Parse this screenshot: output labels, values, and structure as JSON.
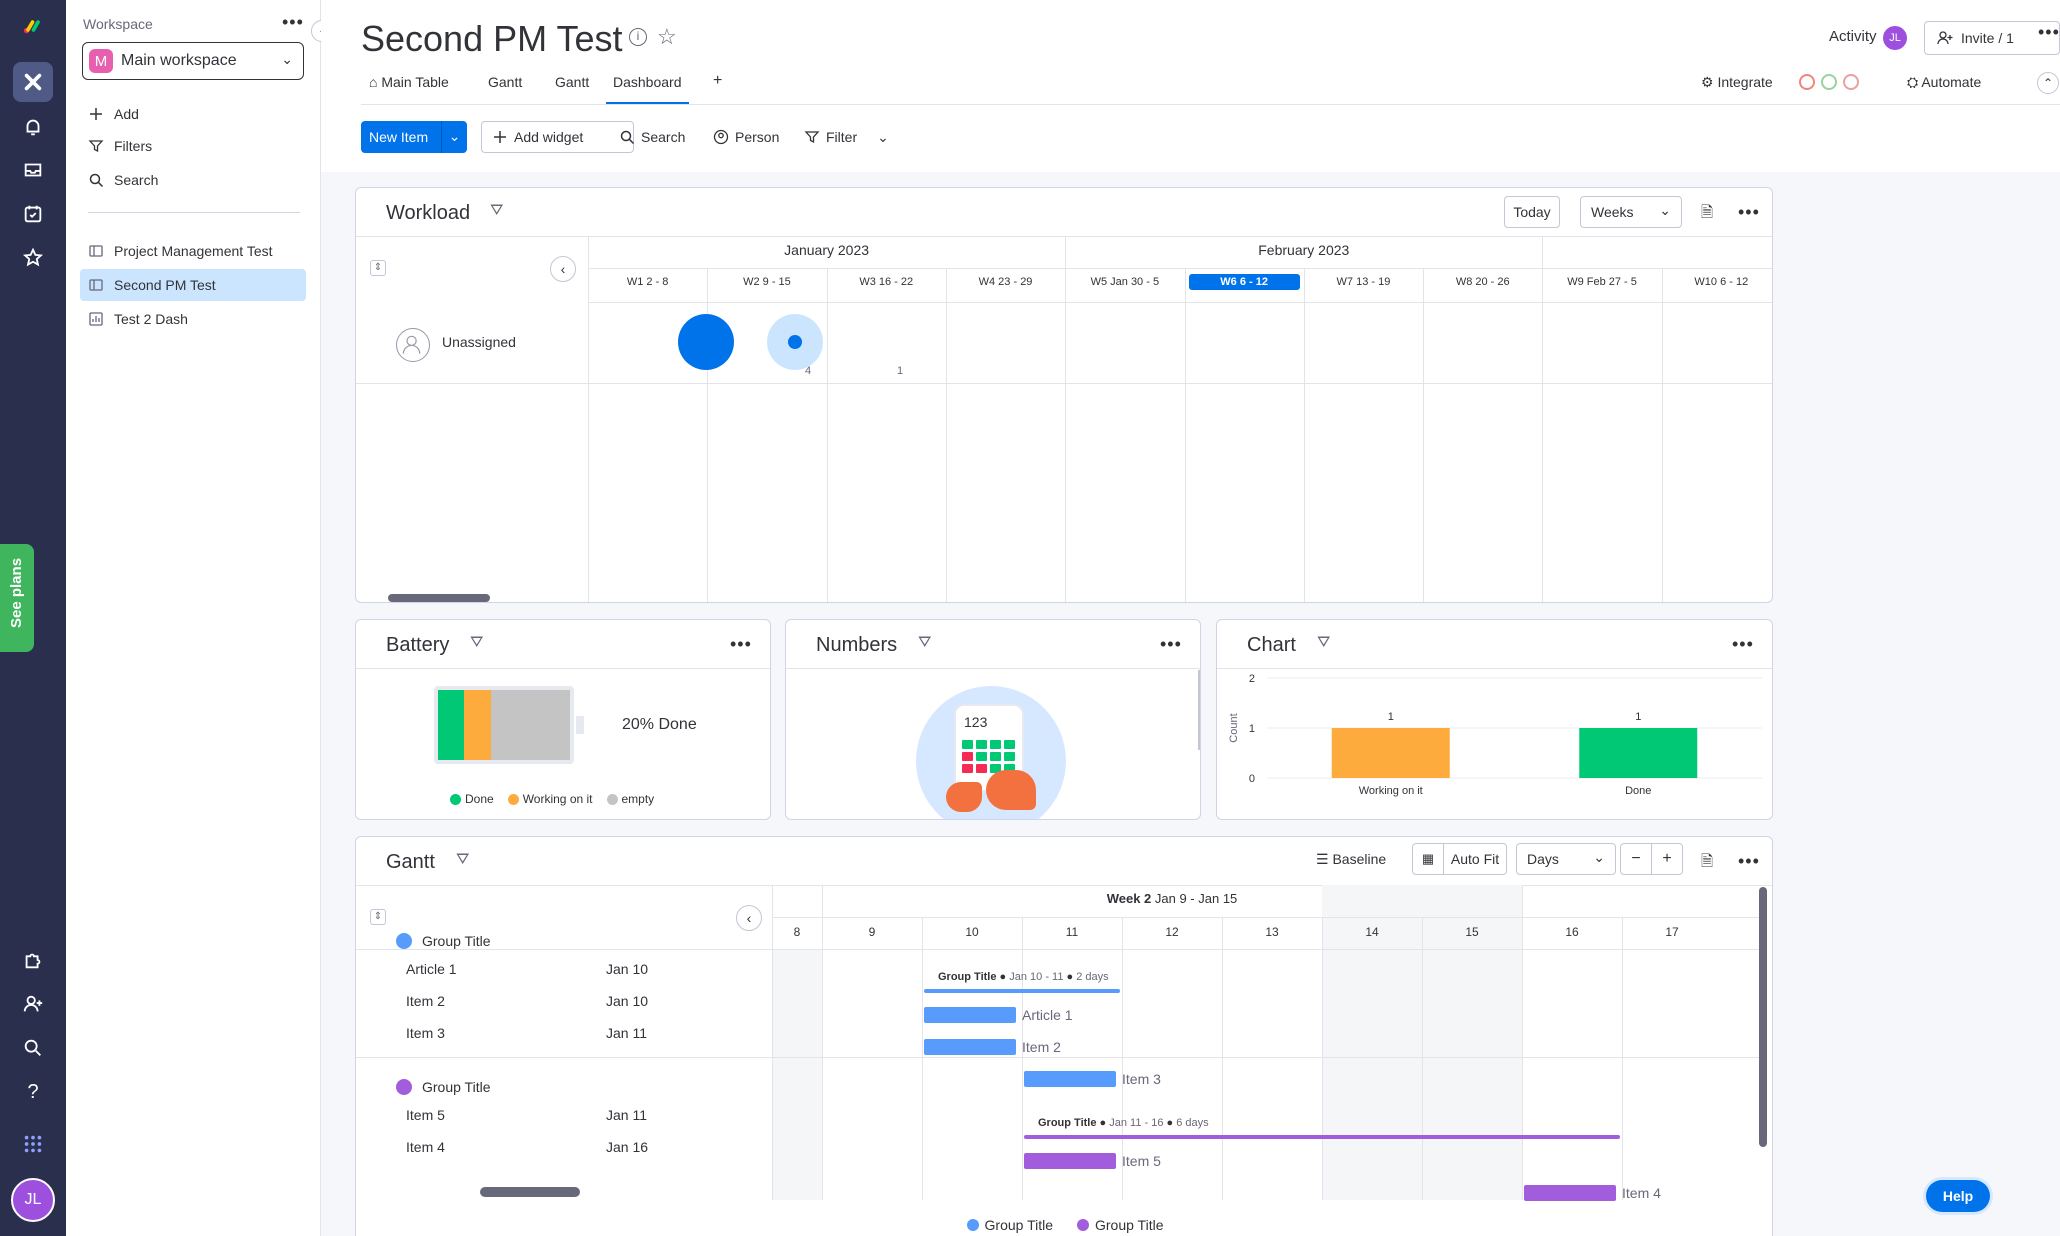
{
  "sidebar": {
    "workspace_label": "Workspace",
    "workspace_name": "Main workspace",
    "workspace_initial": "M",
    "actions": [
      "Add",
      "Filters",
      "Search"
    ],
    "boards": [
      "Project Management Test",
      "Second PM Test",
      "Test 2 Dash"
    ]
  },
  "rail": {
    "see_plans": "See plans",
    "user_initials": "JL"
  },
  "header": {
    "title": "Second PM Test",
    "tabs": [
      "Main Table",
      "Gantt",
      "Gantt",
      "Dashboard",
      "+"
    ],
    "activity": "Activity",
    "activity_initials": "JL",
    "invite": "Invite / 1",
    "integrate": "Integrate",
    "automate": "Automate"
  },
  "toolbar": {
    "new_item": "New Item",
    "add_widget": "Add widget",
    "search": "Search",
    "person": "Person",
    "filter": "Filter"
  },
  "workload": {
    "title": "Workload",
    "today": "Today",
    "scale": "Weeks",
    "months": [
      "January 2023",
      "February 2023"
    ],
    "weeks": [
      "W1  2 - 8",
      "W2  9 - 15",
      "W3  16 - 22",
      "W4  23 - 29",
      "W5  Jan 30 - 5",
      "W6  6 - 12",
      "W7  13 - 19",
      "W8  20 - 26",
      "W9  Feb 27 - 5",
      "W10  6 - 12"
    ],
    "current_week_index": 5,
    "row_label": "Unassigned",
    "counts": [
      {
        "week": 1,
        "count": "4"
      },
      {
        "week": 2,
        "count": "1"
      }
    ]
  },
  "battery": {
    "title": "Battery",
    "summary": "20% Done",
    "segments": [
      {
        "label": "Done",
        "fraction": 0.2,
        "color": "#00c875"
      },
      {
        "label": "Working on it",
        "fraction": 0.2,
        "color": "#fdab3d"
      },
      {
        "label": "empty",
        "fraction": 0.6,
        "color": "#c4c4c4"
      }
    ]
  },
  "numbers": {
    "title": "Numbers",
    "illustration_text": "123"
  },
  "chart": {
    "title": "Chart",
    "ylabel": "Count",
    "yticks": [
      "2",
      "1",
      "0"
    ]
  },
  "chart_data": {
    "type": "bar",
    "categories": [
      "Working on it",
      "Done"
    ],
    "values": [
      1,
      1
    ],
    "colors": [
      "#fdab3d",
      "#00c875"
    ],
    "ylabel": "Count",
    "ylim": [
      0,
      2
    ],
    "data_labels": [
      "1",
      "1"
    ]
  },
  "gantt": {
    "title": "Gantt",
    "baseline": "Baseline",
    "auto_fit": "Auto Fit",
    "scale": "Days",
    "week_header": "Week 2",
    "week_range": "Jan 9 - Jan 15",
    "days": [
      "8",
      "9",
      "10",
      "11",
      "12",
      "13",
      "14",
      "15",
      "16",
      "17"
    ],
    "groups": [
      {
        "name": "Group Title",
        "color": "#579bfc",
        "bar_color": "#579bfc",
        "summary_range": "Jan 10 - 11",
        "summary_duration": "2 days",
        "items": [
          {
            "name": "Article 1",
            "date": "Jan 10"
          },
          {
            "name": "Item 2",
            "date": "Jan 10"
          },
          {
            "name": "Item 3",
            "date": "Jan 11"
          }
        ]
      },
      {
        "name": "Group Title",
        "color": "#a25ddc",
        "bar_color": "#a25ddc",
        "summary_range": "Jan 11 - 16",
        "summary_duration": "6 days",
        "items": [
          {
            "name": "Item 5",
            "date": "Jan 11"
          },
          {
            "name": "Item 4",
            "date": "Jan 16"
          }
        ]
      }
    ],
    "legend": [
      "Group Title",
      "Group Title"
    ]
  },
  "help": "Help"
}
